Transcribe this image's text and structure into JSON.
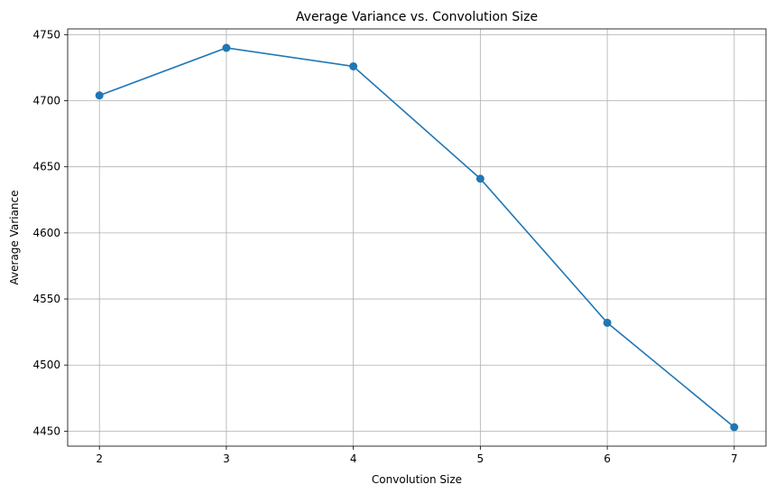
{
  "chart_data": {
    "type": "line",
    "title": "Average Variance vs. Convolution Size",
    "xlabel": "Convolution Size",
    "ylabel": "Average Variance",
    "x": [
      2,
      3,
      4,
      5,
      6,
      7
    ],
    "series": [
      {
        "values": [
          4704,
          4740,
          4726,
          4641,
          4532,
          4453
        ]
      }
    ],
    "xticks": [
      2,
      3,
      4,
      5,
      6,
      7
    ],
    "yticks": [
      4450,
      4500,
      4550,
      4600,
      4650,
      4700,
      4750
    ],
    "xlim": [
      1.75,
      7.25
    ],
    "ylim": [
      4438.65,
      4754.35
    ],
    "grid": true,
    "markers": true,
    "line_color": "#1f77b4",
    "grid_color": "#b0b0b0"
  }
}
